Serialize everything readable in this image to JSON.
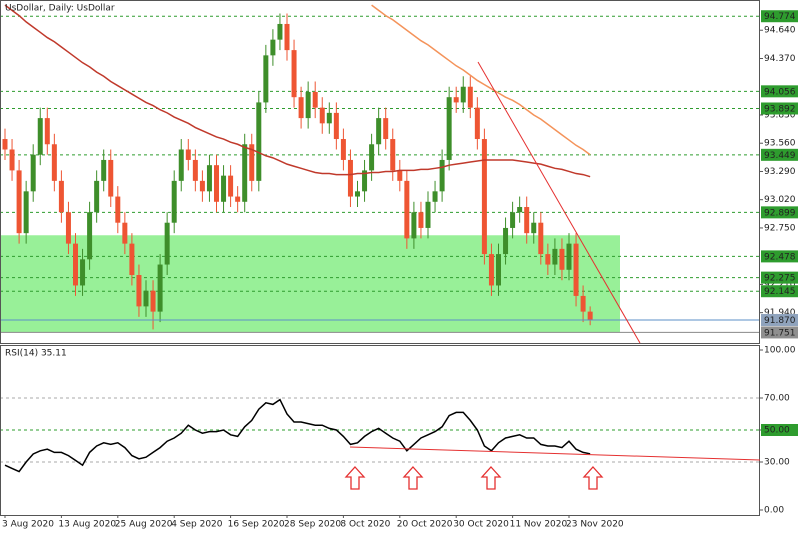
{
  "chart_data": [
    {
      "type": "candlestick",
      "title": "UsDollar, Daily:  UsDollar",
      "categories": [
        "3 Aug 2020",
        null,
        null,
        null,
        null,
        null,
        null,
        null,
        "13 Aug 2020",
        null,
        null,
        null,
        null,
        null,
        null,
        null,
        "25 Aug 2020",
        null,
        null,
        null,
        null,
        null,
        null,
        null,
        "4 Sep 2020",
        null,
        null,
        null,
        null,
        null,
        null,
        null,
        "16 Sep 2020",
        null,
        null,
        null,
        null,
        null,
        null,
        null,
        "28 Sep 2020",
        null,
        null,
        null,
        null,
        null,
        null,
        null,
        "8 Oct 2020",
        null,
        null,
        null,
        null,
        null,
        null,
        null,
        "20 Oct 2020",
        null,
        null,
        null,
        null,
        null,
        null,
        null,
        "30 Oct 2020",
        null,
        null,
        null,
        null,
        null,
        null,
        null,
        "11 Nov 2020",
        null,
        null,
        null,
        null,
        null,
        null,
        null,
        "23 Nov 2020",
        null,
        null,
        null
      ],
      "open": [
        93.6,
        93.5,
        93.3,
        92.7,
        93.1,
        93.45,
        93.8,
        93.55,
        93.2,
        92.9,
        92.6,
        92.2,
        92.45,
        92.9,
        93.2,
        93.4,
        93.05,
        92.8,
        92.6,
        92.3,
        92.0,
        92.15,
        91.95,
        92.4,
        92.8,
        93.2,
        93.5,
        93.4,
        93.2,
        93.1,
        93.35,
        93.0,
        93.25,
        93.05,
        93.0,
        93.55,
        93.2,
        93.95,
        94.4,
        94.55,
        94.7,
        94.45,
        94.0,
        93.8,
        94.05,
        93.9,
        93.75,
        93.85,
        93.6,
        93.4,
        93.05,
        93.1,
        93.3,
        93.55,
        93.8,
        93.6,
        93.3,
        93.2,
        92.65,
        92.9,
        92.75,
        93.0,
        93.1,
        93.4,
        94.0,
        93.95,
        94.1,
        93.9,
        93.6,
        92.5,
        92.2,
        92.5,
        92.75,
        92.9,
        92.95,
        92.7,
        92.8,
        92.5,
        92.4,
        92.55,
        92.35,
        92.6,
        92.1,
        91.95
      ],
      "high": [
        93.7,
        93.6,
        93.4,
        93.2,
        93.55,
        93.9,
        93.9,
        93.65,
        93.3,
        93.0,
        92.7,
        92.55,
        93.0,
        93.3,
        93.5,
        93.5,
        93.15,
        92.9,
        92.7,
        92.4,
        92.25,
        92.25,
        92.5,
        92.9,
        93.3,
        93.6,
        93.6,
        93.5,
        93.3,
        93.45,
        93.45,
        93.35,
        93.35,
        93.15,
        93.65,
        93.65,
        94.05,
        94.5,
        94.65,
        94.8,
        94.8,
        94.55,
        94.1,
        94.15,
        94.15,
        94.0,
        93.95,
        93.95,
        93.7,
        93.5,
        93.2,
        93.4,
        93.65,
        93.9,
        93.9,
        93.7,
        93.4,
        93.3,
        93.0,
        93.0,
        93.1,
        93.2,
        93.5,
        94.1,
        94.1,
        94.2,
        94.2,
        94.0,
        93.7,
        92.6,
        92.6,
        92.85,
        93.0,
        93.05,
        93.05,
        92.9,
        92.9,
        92.6,
        92.65,
        92.65,
        92.7,
        92.7,
        92.2,
        92.0
      ],
      "low": [
        93.4,
        93.2,
        92.6,
        92.6,
        93.0,
        93.35,
        93.45,
        93.1,
        92.8,
        92.5,
        92.1,
        92.1,
        92.35,
        92.8,
        93.1,
        92.95,
        92.7,
        92.5,
        92.2,
        91.9,
        91.9,
        91.78,
        91.85,
        92.3,
        92.7,
        93.1,
        93.3,
        93.1,
        93.0,
        93.0,
        92.9,
        92.9,
        92.95,
        92.9,
        92.9,
        93.1,
        93.1,
        93.85,
        94.3,
        94.45,
        94.35,
        93.9,
        93.7,
        93.7,
        93.8,
        93.65,
        93.65,
        93.5,
        93.3,
        92.95,
        92.95,
        93.0,
        93.2,
        93.45,
        93.5,
        93.2,
        93.1,
        92.55,
        92.55,
        92.65,
        92.65,
        92.9,
        93.0,
        93.3,
        93.85,
        93.85,
        93.8,
        93.5,
        92.4,
        92.1,
        92.1,
        92.4,
        92.65,
        92.8,
        92.6,
        92.6,
        92.4,
        92.3,
        92.3,
        92.25,
        92.25,
        92.0,
        91.85,
        91.82
      ],
      "close": [
        93.5,
        93.3,
        92.7,
        93.1,
        93.45,
        93.8,
        93.55,
        93.2,
        92.9,
        92.6,
        92.2,
        92.45,
        92.9,
        93.2,
        93.4,
        93.05,
        92.8,
        92.6,
        92.3,
        92.0,
        92.15,
        91.95,
        92.4,
        92.8,
        93.2,
        93.5,
        93.4,
        93.2,
        93.1,
        93.35,
        93.0,
        93.25,
        93.05,
        93.0,
        93.55,
        93.2,
        93.95,
        94.4,
        94.55,
        94.7,
        94.45,
        94.0,
        93.8,
        94.05,
        93.9,
        93.75,
        93.85,
        93.6,
        93.4,
        93.05,
        93.1,
        93.3,
        93.55,
        93.8,
        93.6,
        93.3,
        93.2,
        92.65,
        92.9,
        92.75,
        93.0,
        93.1,
        93.4,
        94.0,
        93.95,
        94.1,
        93.9,
        93.6,
        92.5,
        92.2,
        92.5,
        92.75,
        92.9,
        92.95,
        92.7,
        92.8,
        92.5,
        92.4,
        92.55,
        92.35,
        92.6,
        92.1,
        91.95,
        91.87
      ],
      "up_color": "#3e8e2a",
      "down_color": "#ee5533",
      "lines": [
        {
          "color": "#c0392b",
          "values": [
            94.88,
            94.83,
            94.78,
            94.72,
            94.67,
            94.62,
            94.57,
            94.53,
            94.48,
            94.43,
            94.38,
            94.33,
            94.29,
            94.24,
            94.2,
            94.15,
            94.11,
            94.07,
            94.03,
            93.99,
            93.95,
            93.92,
            93.88,
            93.85,
            93.81,
            93.78,
            93.75,
            93.71,
            93.68,
            93.65,
            93.62,
            93.6,
            93.57,
            93.55,
            93.52,
            93.5,
            93.47,
            93.44,
            93.42,
            93.39,
            93.36,
            93.34,
            93.32,
            93.3,
            93.28,
            93.27,
            93.27,
            93.26,
            93.26,
            93.26,
            93.27,
            93.27,
            93.28,
            93.28,
            93.29,
            93.29,
            93.3,
            93.3,
            93.3,
            93.31,
            93.31,
            93.32,
            93.33,
            93.35,
            93.36,
            93.37,
            93.38,
            93.39,
            93.4,
            93.4,
            93.4,
            93.4,
            93.4,
            93.39,
            93.38,
            93.37,
            93.36,
            93.34,
            93.32,
            93.31,
            93.29,
            93.27,
            93.26,
            93.24
          ]
        },
        {
          "color": "#f4935a",
          "values": [
            null,
            null,
            null,
            null,
            null,
            null,
            null,
            null,
            null,
            null,
            null,
            null,
            null,
            null,
            null,
            null,
            null,
            null,
            null,
            null,
            null,
            null,
            null,
            null,
            null,
            null,
            null,
            null,
            null,
            null,
            null,
            null,
            null,
            null,
            null,
            null,
            null,
            null,
            null,
            null,
            null,
            null,
            null,
            null,
            null,
            null,
            null,
            null,
            null,
            null,
            null,
            null,
            94.88,
            94.83,
            94.78,
            94.74,
            94.69,
            94.64,
            94.59,
            94.54,
            94.5,
            94.45,
            94.4,
            94.35,
            94.3,
            94.26,
            94.21,
            94.16,
            94.12,
            94.08,
            94.04,
            94.0,
            93.97,
            93.93,
            93.88,
            93.83,
            93.79,
            93.74,
            93.69,
            93.64,
            93.59,
            93.54,
            93.5,
            93.45
          ]
        }
      ],
      "ylim": [
        91.65,
        94.91
      ],
      "yticks": [
        {
          "value": 94.64,
          "label": "94.640"
        },
        {
          "value": 94.37,
          "label": "94.370"
        },
        {
          "value": 93.83,
          "label": "93.830"
        },
        {
          "value": 93.56,
          "label": "93.560"
        },
        {
          "value": 93.29,
          "label": "93.290"
        },
        {
          "value": 93.02,
          "label": "93.020"
        },
        {
          "value": 92.75,
          "label": "92.750"
        },
        {
          "value": 92.21,
          "label": "92.210"
        },
        {
          "value": 91.94,
          "label": "91.940"
        }
      ],
      "levels": [
        94.774,
        94.056,
        93.892,
        93.449,
        92.899,
        92.478,
        92.275,
        92.145
      ],
      "level_color": "#2e9c2e",
      "zone": {
        "from": 91.751,
        "to": 92.68,
        "color": "#98f098"
      },
      "current_price": {
        "value": 91.87,
        "label": "91.870"
      }
    },
    {
      "type": "line",
      "title": "RSI(14) 35.11",
      "color": "#000000",
      "values": [
        28,
        26,
        24,
        30,
        35,
        37,
        38,
        36,
        36,
        34,
        31,
        28,
        36,
        40,
        42,
        41,
        42,
        39,
        34,
        32,
        33,
        36,
        39,
        43,
        45,
        48,
        53,
        50,
        48,
        49,
        49,
        50,
        47,
        46,
        52,
        56,
        63,
        67,
        66,
        69,
        60,
        55,
        55,
        54,
        53,
        53,
        51,
        50,
        46,
        41,
        42,
        46,
        49,
        51,
        48,
        45,
        43,
        37,
        41,
        45,
        47,
        49,
        52,
        59,
        61,
        61,
        56,
        50,
        40,
        37,
        42,
        45,
        46,
        47,
        45,
        45,
        41,
        40,
        40,
        39,
        43,
        38,
        36,
        35.11
      ],
      "ylim": [
        0,
        100
      ],
      "yticks": [
        {
          "value": 100,
          "label": "100.00"
        },
        {
          "value": 70,
          "label": "70.00"
        },
        {
          "value": 50,
          "label": "50.00"
        },
        {
          "value": 30,
          "label": "30.00"
        },
        {
          "value": 0,
          "label": "0.00"
        }
      ],
      "levels": [
        70,
        50,
        30
      ],
      "highlight": 50,
      "level_color": "#2e9c2e"
    }
  ]
}
